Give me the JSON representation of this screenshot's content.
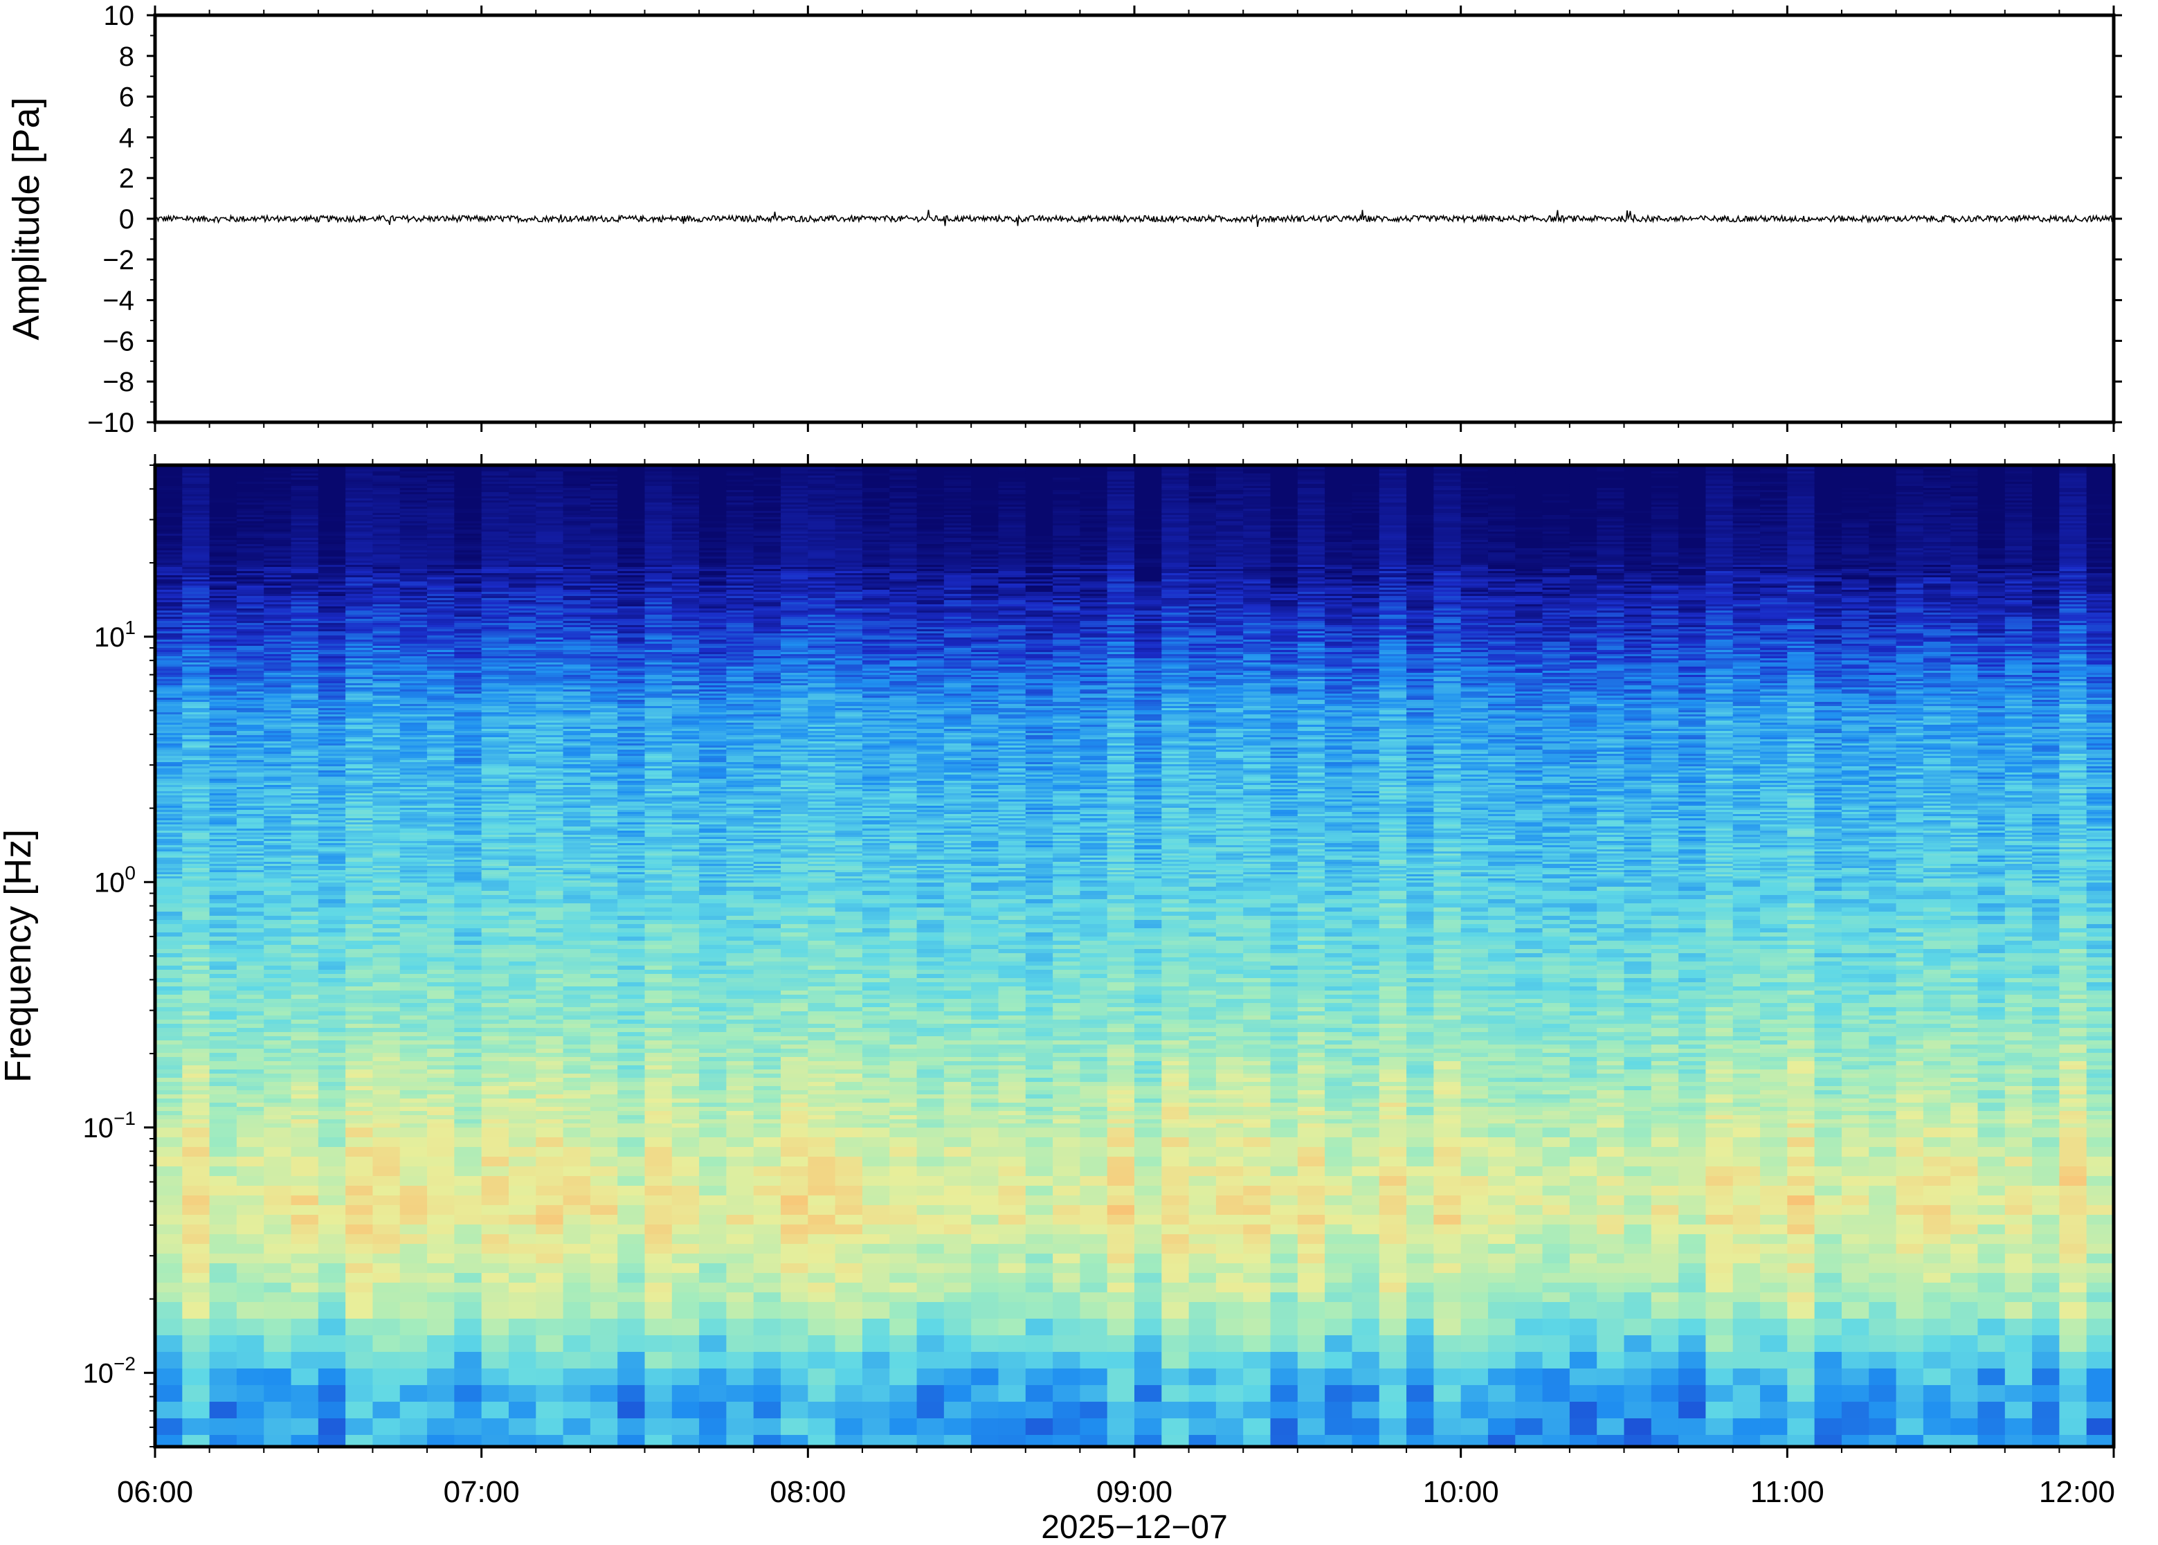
{
  "chart_data": [
    {
      "type": "line",
      "name": "waveform",
      "ylabel": "Amplitude [Pa]",
      "ylim": [
        -10,
        10
      ],
      "yticks": [
        10,
        8,
        6,
        4,
        2,
        0,
        -2,
        -4,
        -6,
        -8,
        -10
      ],
      "ytick_labels": [
        "10",
        "8",
        "6",
        "4",
        "2",
        "0",
        "−2",
        "−4",
        "−6",
        "−8",
        "−10"
      ],
      "xlim": [
        "06:00",
        "12:00"
      ],
      "baseline": 0,
      "noise_amplitude": 0.15,
      "grid": false
    },
    {
      "type": "heatmap",
      "name": "spectrogram",
      "ylabel": "Frequency [Hz]",
      "yscale": "log",
      "ylim": [
        0.005,
        50
      ],
      "yticks": [
        {
          "value": 0.01,
          "base": "10",
          "exp": "−2"
        },
        {
          "value": 0.1,
          "base": "10",
          "exp": "−1"
        },
        {
          "value": 1,
          "base": "10",
          "exp": "0"
        },
        {
          "value": 10,
          "base": "10",
          "exp": "1"
        }
      ],
      "xlim": [
        "06:00",
        "12:00"
      ],
      "xtick_labels": [
        "06:00",
        "07:00",
        "08:00",
        "09:00",
        "10:00",
        "11:00",
        "12:00"
      ],
      "xlabel": "2025−12−07",
      "colormap": [
        "#08086e",
        "#1a2cc8",
        "#1f8ff0",
        "#5fd8e6",
        "#a4ecbd",
        "#e8ee9a",
        "#f8c678",
        "#f29a52"
      ],
      "time_columns": 72,
      "power_profile": [
        {
          "freq": 50,
          "level": 0.0
        },
        {
          "freq": 20,
          "level": 0.05
        },
        {
          "freq": 10,
          "level": 0.18
        },
        {
          "freq": 5,
          "level": 0.32
        },
        {
          "freq": 1,
          "level": 0.42
        },
        {
          "freq": 0.3,
          "level": 0.52
        },
        {
          "freq": 0.1,
          "level": 0.66
        },
        {
          "freq": 0.05,
          "level": 0.74
        },
        {
          "freq": 0.02,
          "level": 0.6
        },
        {
          "freq": 0.01,
          "level": 0.36
        },
        {
          "freq": 0.005,
          "level": 0.32
        }
      ],
      "grid": false
    }
  ]
}
